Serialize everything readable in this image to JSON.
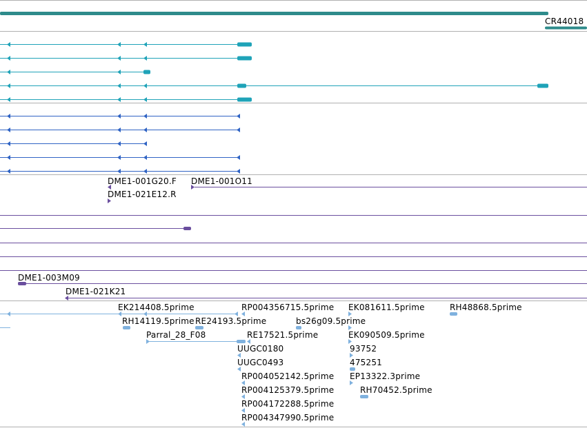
{
  "colors": {
    "background": "#ffffff",
    "divider": "#b0b0b0",
    "gene": "#2e8b8b",
    "transcript_teal": "#1fa3b8",
    "transcript_blue": "#2f63c4",
    "bac": "#6a4e9e",
    "est": "#7fb1de"
  },
  "gene_track": {
    "gene_name": "CR44018"
  },
  "bac_track": {
    "labels": [
      "DME1-001G20.F",
      "DME1-021E12.R",
      "DME1-001O11",
      "DME1-003M09",
      "DME1-021K21"
    ]
  },
  "est_track": {
    "labels": [
      "EK214408.5prime",
      "RP004356715.5prime",
      "EK081611.5prime",
      "RH48868.5prime",
      "RH14119.5prime",
      "RE24193.5prime",
      "bs26g09.5prime",
      "Parral_28_F08",
      "RE17521.5prime",
      "EK090509.5prime",
      "UUGC0180",
      "93752",
      "UUGC0493",
      "475251",
      "RP004052142.5prime",
      "EP13322.3prime",
      "RP004125379.5prime",
      "RH70452.5prime",
      "RP004172288.5prime",
      "RP004347990.5prime"
    ]
  }
}
